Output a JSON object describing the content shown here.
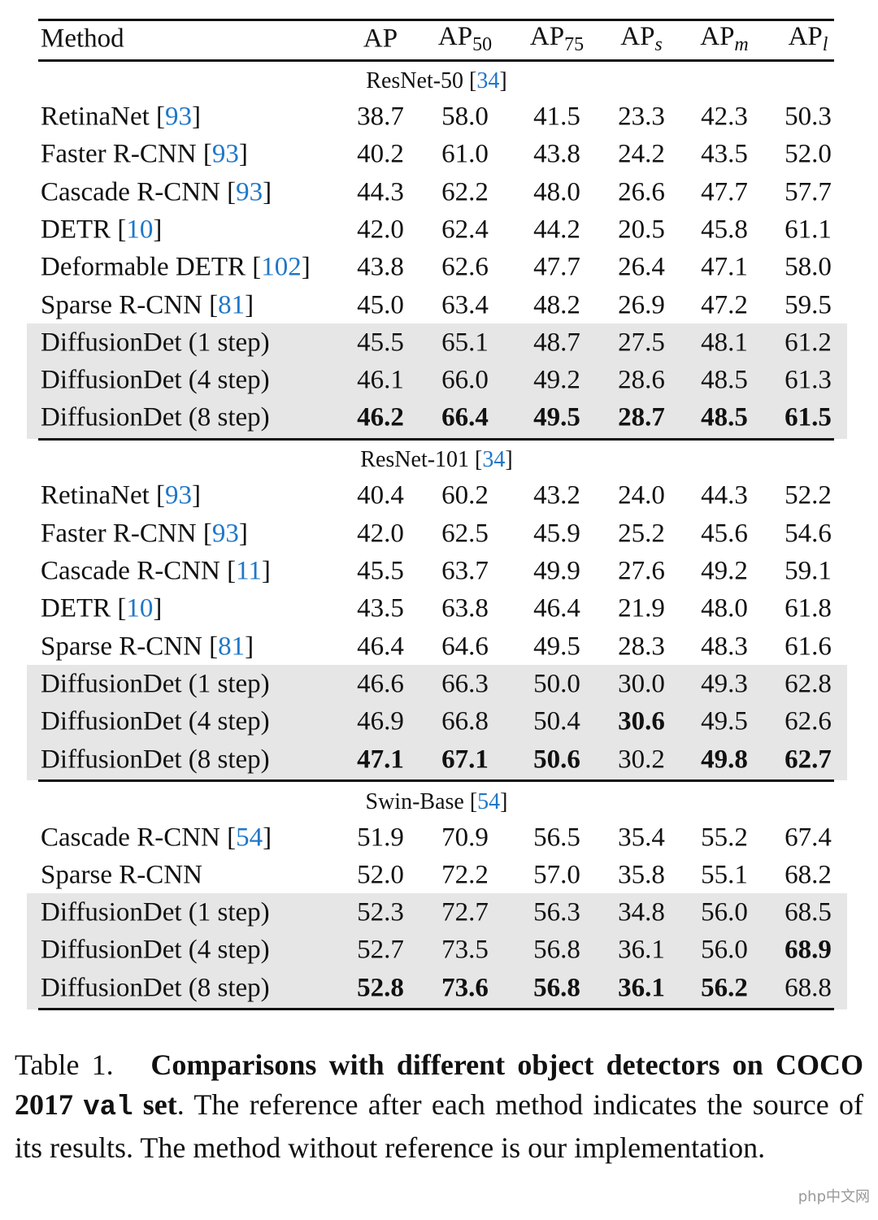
{
  "table": {
    "columns": [
      {
        "base": "Method"
      },
      {
        "base": "AP"
      },
      {
        "base": "AP",
        "sub": "50"
      },
      {
        "base": "AP",
        "sub": "75"
      },
      {
        "base": "AP",
        "sub": "s"
      },
      {
        "base": "AP",
        "sub": "m"
      },
      {
        "base": "AP",
        "sub": "l"
      }
    ],
    "sections": [
      {
        "backbone": "ResNet-50",
        "ref": "34",
        "rows": [
          {
            "method": "RetinaNet",
            "ref": "93",
            "values": [
              "38.7",
              "58.0",
              "41.5",
              "23.3",
              "42.3",
              "50.3"
            ]
          },
          {
            "method": "Faster R-CNN",
            "ref": "93",
            "values": [
              "40.2",
              "61.0",
              "43.8",
              "24.2",
              "43.5",
              "52.0"
            ]
          },
          {
            "method": "Cascade R-CNN",
            "ref": "93",
            "values": [
              "44.3",
              "62.2",
              "48.0",
              "26.6",
              "47.7",
              "57.7"
            ]
          },
          {
            "method": "DETR",
            "ref": "10",
            "values": [
              "42.0",
              "62.4",
              "44.2",
              "20.5",
              "45.8",
              "61.1"
            ]
          },
          {
            "method": "Deformable DETR",
            "ref": "102",
            "values": [
              "43.8",
              "62.6",
              "47.7",
              "26.4",
              "47.1",
              "58.0"
            ]
          },
          {
            "method": "Sparse R-CNN",
            "ref": "81",
            "values": [
              "45.0",
              "63.4",
              "48.2",
              "26.9",
              "47.2",
              "59.5"
            ]
          },
          {
            "method": "DiffusionDet (1 step)",
            "values": [
              "45.5",
              "65.1",
              "48.7",
              "27.5",
              "48.1",
              "61.2"
            ],
            "shaded": true
          },
          {
            "method": "DiffusionDet (4 step)",
            "values": [
              "46.1",
              "66.0",
              "49.2",
              "28.6",
              "48.5",
              "61.3"
            ],
            "shaded": true
          },
          {
            "method": "DiffusionDet (8 step)",
            "values": [
              "46.2",
              "66.4",
              "49.5",
              "28.7",
              "48.5",
              "61.5"
            ],
            "shaded": true,
            "bold": [
              0,
              1,
              2,
              3,
              4,
              5
            ]
          }
        ]
      },
      {
        "backbone": "ResNet-101",
        "ref": "34",
        "rows": [
          {
            "method": "RetinaNet",
            "ref": "93",
            "values": [
              "40.4",
              "60.2",
              "43.2",
              "24.0",
              "44.3",
              "52.2"
            ]
          },
          {
            "method": "Faster R-CNN",
            "ref": "93",
            "values": [
              "42.0",
              "62.5",
              "45.9",
              "25.2",
              "45.6",
              "54.6"
            ]
          },
          {
            "method": "Cascade R-CNN",
            "ref": "11",
            "values": [
              "45.5",
              "63.7",
              "49.9",
              "27.6",
              "49.2",
              "59.1"
            ]
          },
          {
            "method": "DETR",
            "ref": "10",
            "values": [
              "43.5",
              "63.8",
              "46.4",
              "21.9",
              "48.0",
              "61.8"
            ]
          },
          {
            "method": "Sparse R-CNN",
            "ref": "81",
            "values": [
              "46.4",
              "64.6",
              "49.5",
              "28.3",
              "48.3",
              "61.6"
            ]
          },
          {
            "method": "DiffusionDet (1 step)",
            "values": [
              "46.6",
              "66.3",
              "50.0",
              "30.0",
              "49.3",
              "62.8"
            ],
            "shaded": true
          },
          {
            "method": "DiffusionDet (4 step)",
            "values": [
              "46.9",
              "66.8",
              "50.4",
              "30.6",
              "49.5",
              "62.6"
            ],
            "shaded": true,
            "bold": [
              3
            ]
          },
          {
            "method": "DiffusionDet (8 step)",
            "values": [
              "47.1",
              "67.1",
              "50.6",
              "30.2",
              "49.8",
              "62.7"
            ],
            "shaded": true,
            "bold": [
              0,
              1,
              2,
              4,
              5
            ]
          }
        ]
      },
      {
        "backbone": "Swin-Base",
        "ref": "54",
        "rows": [
          {
            "method": "Cascade R-CNN",
            "ref": "54",
            "values": [
              "51.9",
              "70.9",
              "56.5",
              "35.4",
              "55.2",
              "67.4"
            ]
          },
          {
            "method": "Sparse R-CNN",
            "values": [
              "52.0",
              "72.2",
              "57.0",
              "35.8",
              "55.1",
              "68.2"
            ]
          },
          {
            "method": "DiffusionDet (1 step)",
            "values": [
              "52.3",
              "72.7",
              "56.3",
              "34.8",
              "56.0",
              "68.5"
            ],
            "shaded": true
          },
          {
            "method": "DiffusionDet (4 step)",
            "values": [
              "52.7",
              "73.5",
              "56.8",
              "36.1",
              "56.0",
              "68.9"
            ],
            "shaded": true,
            "bold": [
              5
            ]
          },
          {
            "method": "DiffusionDet (8 step)",
            "values": [
              "52.8",
              "73.6",
              "56.8",
              "36.1",
              "56.2",
              "68.8"
            ],
            "shaded": true,
            "bold": [
              0,
              1,
              2,
              3,
              4
            ]
          }
        ]
      }
    ]
  },
  "caption": {
    "label": "Table 1.",
    "bold_lead": "Comparisons with different object detectors on COCO 2017",
    "code": "val",
    "bold_tail": "set",
    "text": ". The reference after each method indicates the source of its results. The method without reference is our implementation."
  },
  "watermark": "php中文网"
}
